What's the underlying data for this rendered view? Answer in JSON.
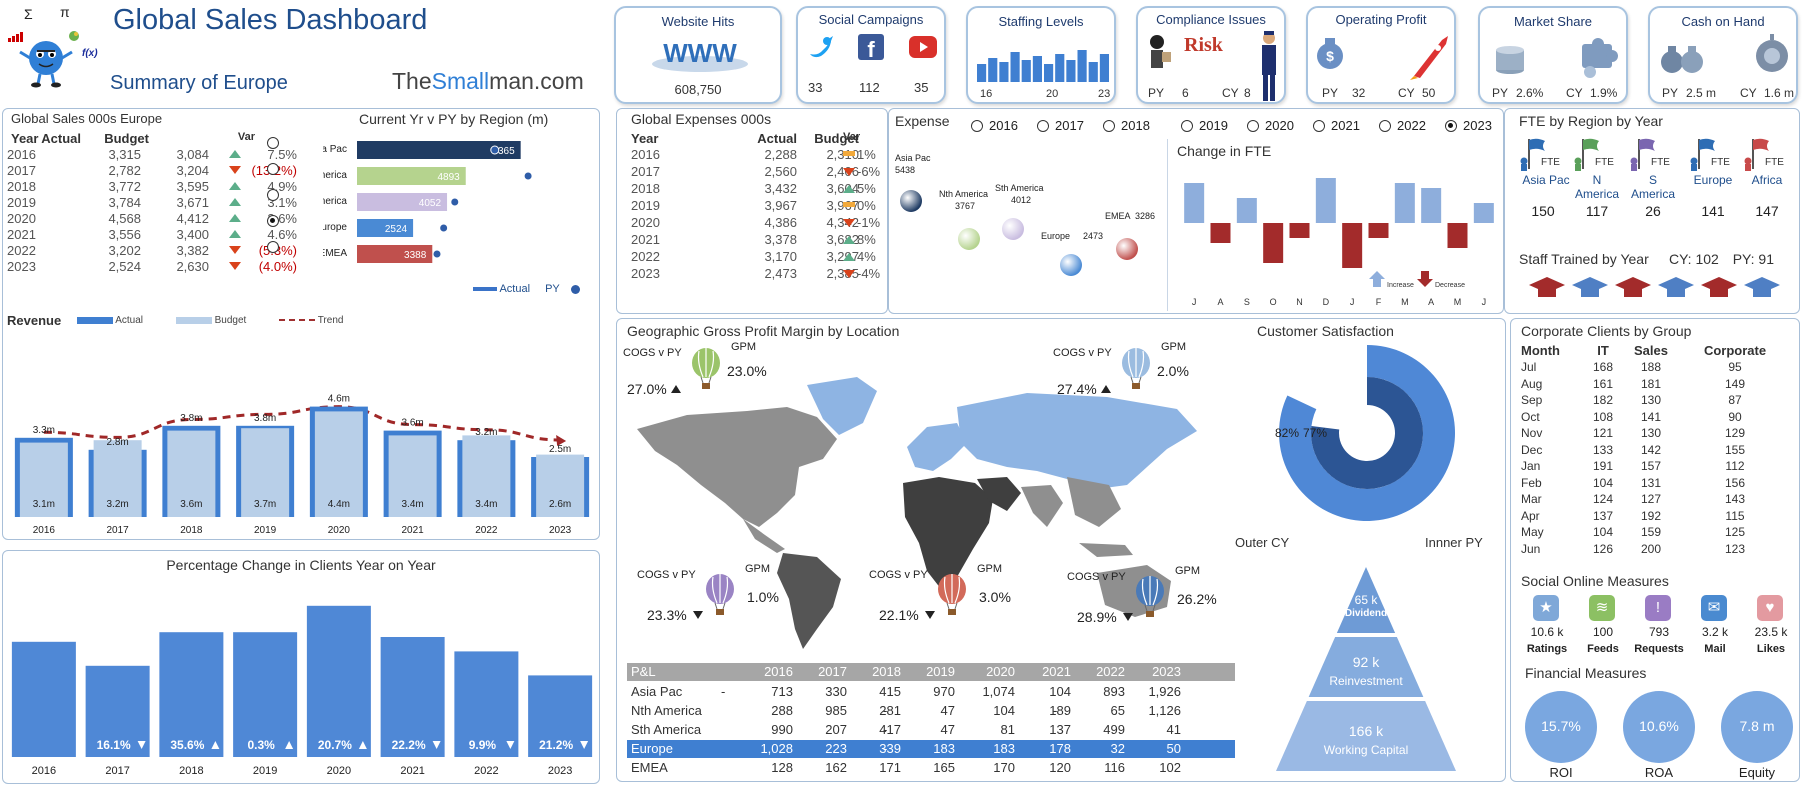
{
  "header": {
    "title": "Global Sales Dashboard",
    "subtitle": "Summary of Europe",
    "brand_pre": "The",
    "brand_mid": "Small",
    "brand_post": "man.com",
    "sigma": "Σ",
    "pi": "π",
    "fx": "f(x)"
  },
  "kpis": {
    "website": {
      "title": "Website Hits",
      "value": "608,750",
      "badge": "WWW"
    },
    "social": {
      "title": "Social Campaigns",
      "twitter": "33",
      "facebook": "112",
      "youtube": "35"
    },
    "staffing": {
      "title": "Staffing Levels",
      "labels": [
        "16",
        "20",
        "23"
      ],
      "bars": [
        0.45,
        0.6,
        0.5,
        0.75,
        0.55,
        0.65,
        0.45,
        0.7,
        0.55,
        0.8,
        0.5,
        0.7
      ]
    },
    "compliance": {
      "title": "Compliance Issues",
      "pr": "PY",
      "py": "6",
      "cl": "CY",
      "cy": "8",
      "badge": "Risk"
    },
    "profit": {
      "title": "Operating Profit",
      "pl": "PY",
      "py": "32",
      "cl": "CY",
      "cy": "50"
    },
    "share": {
      "title": "Market Share",
      "pl": "PY",
      "py": "2.6%",
      "cl": "CY",
      "cy": "1.9%"
    },
    "cash": {
      "title": "Cash on Hand",
      "pl": "PY",
      "py": "2.5 m",
      "cl": "CY",
      "cy": "1.6 m"
    }
  },
  "sales_table": {
    "title": "Global Sales 000s Europe",
    "headers": [
      "Year",
      "Actual",
      "Budget",
      "Var"
    ],
    "rows": [
      {
        "year": "2016",
        "actual": "3,315",
        "budget": "3,084",
        "var": "7.5%",
        "dir": "up"
      },
      {
        "year": "2017",
        "actual": "2,782",
        "budget": "3,204",
        "var": "(13.2%)",
        "dir": "down"
      },
      {
        "year": "2018",
        "actual": "3,772",
        "budget": "3,595",
        "var": "4.9%",
        "dir": "up"
      },
      {
        "year": "2019",
        "actual": "3,784",
        "budget": "3,671",
        "var": "3.1%",
        "dir": "up"
      },
      {
        "year": "2020",
        "actual": "4,568",
        "budget": "4,412",
        "var": "3.6%",
        "dir": "up"
      },
      {
        "year": "2021",
        "actual": "3,556",
        "budget": "3,400",
        "var": "4.6%",
        "dir": "up"
      },
      {
        "year": "2022",
        "actual": "3,202",
        "budget": "3,382",
        "var": "(5.3%)",
        "dir": "down"
      },
      {
        "year": "2023",
        "actual": "2,524",
        "budget": "2,630",
        "var": "(4.0%)",
        "dir": "down"
      }
    ]
  },
  "region_panel": {
    "title": "Current Yr v PY by Region (m)",
    "legend_actual": "Actual",
    "legend_py": "PY",
    "selected": "Europe"
  },
  "expenses_table": {
    "title": "Global Expenses 000s",
    "headers": [
      "Year",
      "Actual",
      "Budget",
      "Var"
    ],
    "rows": [
      {
        "year": "2016",
        "actual": "2,288",
        "budget": "2,310",
        "var": "1%",
        "dir": "flat"
      },
      {
        "year": "2017",
        "actual": "2,560",
        "budget": "2,406",
        "var": "-6%",
        "dir": "down"
      },
      {
        "year": "2018",
        "actual": "3,432",
        "budget": "3,604",
        "var": "5%",
        "dir": "up"
      },
      {
        "year": "2019",
        "actual": "3,967",
        "budget": "3,967",
        "var": "0%",
        "dir": "flat"
      },
      {
        "year": "2020",
        "actual": "4,386",
        "budget": "4,342",
        "var": "-1%",
        "dir": "down"
      },
      {
        "year": "2021",
        "actual": "3,378",
        "budget": "3,682",
        "var": "8%",
        "dir": "up"
      },
      {
        "year": "2022",
        "actual": "3,170",
        "budget": "3,297",
        "var": "4%",
        "dir": "up"
      },
      {
        "year": "2023",
        "actual": "2,473",
        "budget": "2,385",
        "var": "-4%",
        "dir": "down"
      }
    ]
  },
  "expense_panel": {
    "title": "Expense",
    "years": [
      "2016",
      "2017",
      "2018",
      "2019",
      "2020",
      "2021",
      "2022",
      "2023"
    ],
    "selected_year": "2023"
  },
  "fte_change": {
    "title": "Change in FTE",
    "increase": "Increase",
    "decrease": "Decrease"
  },
  "fte_region": {
    "title": "FTE by Region by Year",
    "flag_label": "FTE",
    "regions": [
      {
        "name": "Asia Pac",
        "value": "150",
        "color": "#2e6db4"
      },
      {
        "name": "N America",
        "value": "117",
        "color": "#5aa05a"
      },
      {
        "name": "S America",
        "value": "26",
        "color": "#7a66b0"
      },
      {
        "name": "Europe",
        "value": "141",
        "color": "#2e6db4"
      },
      {
        "name": "Africa",
        "value": "147",
        "color": "#c84a4a"
      }
    ],
    "staff_trained": "Staff Trained by Year",
    "cy_label": "CY:",
    "cy": "102",
    "py_label": "PY:",
    "py": "91"
  },
  "revenue": {
    "title": "Revenue",
    "legend_actual": "Actual",
    "legend_budget": "Budget",
    "legend_trend": "Trend"
  },
  "clients": {
    "title": "Percentage Change in Clients Year on Year"
  },
  "map": {
    "title": "Geographic Gross Profit Margin by Location",
    "balloons": [
      {
        "region": "Nth America",
        "cogs_label": "COGS v PY",
        "cogs": "27.0%",
        "gpm_label": "GPM",
        "gpm": "23.0%",
        "color": "#9bc46a",
        "dir": "up"
      },
      {
        "region": "Europe",
        "cogs_label": "COGS v PY",
        "cogs": "27.4%",
        "gpm_label": "GPM",
        "gpm": "2.0%",
        "color": "#9bbce0",
        "dir": "up"
      },
      {
        "region": "Sth America",
        "cogs_label": "COGS v PY",
        "cogs": "23.3%",
        "gpm_label": "GPM",
        "gpm": "1.0%",
        "color": "#9a84c4",
        "dir": "down"
      },
      {
        "region": "EMEA",
        "cogs_label": "COGS v PY",
        "cogs": "22.1%",
        "gpm_label": "GPM",
        "gpm": "3.0%",
        "color": "#d26a5a",
        "dir": "down"
      },
      {
        "region": "Asia Pac",
        "cogs_label": "COGS v PY",
        "cogs": "28.9%",
        "gpm_label": "GPM",
        "gpm": "26.2%",
        "color": "#4a7ab8",
        "dir": "down"
      }
    ]
  },
  "pl_table": {
    "headers": [
      "P&L",
      "2016",
      "2017",
      "2018",
      "2019",
      "2020",
      "2021",
      "2022",
      "2023"
    ],
    "rows": [
      {
        "name": "Asia Pac",
        "vals": [
          "713",
          "330",
          "415",
          "970",
          "1,074",
          "104",
          "893",
          "1,926"
        ],
        "neg": [
          true,
          false,
          false,
          false,
          false,
          false,
          false,
          false
        ],
        "selected": false
      },
      {
        "name": "Nth America",
        "vals": [
          "288",
          "985",
          "281",
          "47",
          "104",
          "189",
          "65",
          "1,126"
        ],
        "neg": [
          false,
          false,
          false,
          true,
          false,
          false,
          true,
          false
        ],
        "selected": false
      },
      {
        "name": "Sth America",
        "vals": [
          "990",
          "207",
          "417",
          "47",
          "81",
          "137",
          "499",
          "41"
        ],
        "neg": [
          false,
          false,
          false,
          true,
          false,
          false,
          false,
          false
        ],
        "selected": false
      },
      {
        "name": "Europe",
        "vals": [
          "1,028",
          "223",
          "339",
          "183",
          "183",
          "178",
          "32",
          "50"
        ],
        "neg": [
          false,
          false,
          false,
          true,
          false,
          false,
          false,
          false
        ],
        "selected": true
      },
      {
        "name": "EMEA",
        "vals": [
          "128",
          "162",
          "171",
          "165",
          "170",
          "120",
          "116",
          "102"
        ],
        "neg": [
          false,
          false,
          false,
          false,
          false,
          false,
          false,
          false
        ],
        "selected": false
      }
    ]
  },
  "satisfaction": {
    "title": "Customer Satisfaction",
    "outer_label": "Outer CY",
    "inner_label": "Innner PY"
  },
  "pyramid": [
    {
      "value": "65 k",
      "label": "Dividend"
    },
    {
      "value": "92 k",
      "label": "Reinvestment"
    },
    {
      "value": "166 k",
      "label": "Working Capital"
    }
  ],
  "corporate": {
    "title": "Corporate Clients by Group",
    "headers": [
      "Month",
      "IT",
      "Sales",
      "Corporate"
    ],
    "rows": [
      [
        "Jul",
        "168",
        "188",
        "95"
      ],
      [
        "Aug",
        "161",
        "181",
        "149"
      ],
      [
        "Sep",
        "182",
        "130",
        "87"
      ],
      [
        "Oct",
        "108",
        "141",
        "90"
      ],
      [
        "Nov",
        "121",
        "130",
        "129"
      ],
      [
        "Dec",
        "133",
        "142",
        "155"
      ],
      [
        "Jan",
        "191",
        "157",
        "112"
      ],
      [
        "Feb",
        "104",
        "131",
        "156"
      ],
      [
        "Mar",
        "124",
        "127",
        "143"
      ],
      [
        "Apr",
        "137",
        "192",
        "115"
      ],
      [
        "May",
        "104",
        "159",
        "125"
      ],
      [
        "Jun",
        "126",
        "200",
        "123"
      ]
    ]
  },
  "social_measures": {
    "title": "Social Online Measures",
    "items": [
      {
        "value": "10.6 k",
        "label": "Ratings",
        "color": "#7fa8d8",
        "icon": "★"
      },
      {
        "value": "100",
        "label": "Feeds",
        "color": "#8cc063",
        "icon": "≋"
      },
      {
        "value": "793",
        "label": "Requests",
        "color": "#9a7cc4",
        "icon": "!"
      },
      {
        "value": "3.2 k",
        "label": "Mail",
        "color": "#4a8ad0",
        "icon": "✉"
      },
      {
        "value": "23.5 k",
        "label": "Likes",
        "color": "#e39aa0",
        "icon": "♥"
      }
    ]
  },
  "financial": {
    "title": "Financial Measures",
    "items": [
      {
        "value": "15.7%",
        "label": "ROI"
      },
      {
        "value": "10.6%",
        "label": "ROA"
      },
      {
        "value": "7.8 m",
        "label": "Equity"
      }
    ]
  },
  "chart_data": [
    {
      "type": "bar",
      "title": "Current Yr v PY by Region (m)",
      "categories": [
        "Asia Pac",
        "Nth America",
        "Sth America",
        "Europe",
        "EMEA"
      ],
      "series": [
        {
          "name": "Actual",
          "values": [
            7365,
            4893,
            4052,
            2524,
            3388
          ]
        },
        {
          "name": "PY",
          "values": [
            6200,
            7700,
            4400,
            3900,
            3600
          ]
        }
      ],
      "colors": [
        "#1f3b63",
        "#b5d38e",
        "#c9bde0",
        "#4a8ad4",
        "#c0504d"
      ],
      "xlim": [
        0,
        9000
      ]
    },
    {
      "type": "bar",
      "title": "Revenue",
      "categories": [
        "2016",
        "2017",
        "2018",
        "2019",
        "2020",
        "2021",
        "2022",
        "2023"
      ],
      "series": [
        {
          "name": "Actual",
          "values": [
            3.3,
            2.8,
            3.8,
            3.8,
            4.6,
            3.6,
            3.2,
            2.5
          ],
          "labels": [
            "3.3m",
            "2.8m",
            "3.8m",
            "3.8m",
            "4.6m",
            "3.6m",
            "3.2m",
            "2.5m"
          ]
        },
        {
          "name": "Budget",
          "values": [
            3.1,
            3.2,
            3.6,
            3.7,
            4.4,
            3.4,
            3.4,
            2.6
          ],
          "labels": [
            "3.1m",
            "3.2m",
            "3.6m",
            "3.7m",
            "4.4m",
            "3.4m",
            "3.4m",
            "2.6m"
          ]
        },
        {
          "name": "Trend",
          "values": [
            3.7,
            3.5,
            4.2,
            4.4,
            4.7,
            4.0,
            3.8,
            3.4
          ]
        }
      ],
      "ylim": [
        0,
        5
      ]
    },
    {
      "type": "bar",
      "title": "Percentage Change in Clients Year on Year",
      "categories": [
        "2016",
        "2017",
        "2018",
        "2019",
        "2020",
        "2021",
        "2022",
        "2023"
      ],
      "values": [
        48,
        38,
        52,
        52,
        63,
        50,
        44,
        34
      ],
      "labels": [
        "",
        "16.1%",
        "35.6%",
        "0.3%",
        "20.7%",
        "22.2%",
        "9.9%",
        "21.2%"
      ],
      "dirs": [
        "",
        "down",
        "up",
        "up",
        "up",
        "down",
        "down",
        "down"
      ],
      "ylim": [
        0,
        70
      ]
    },
    {
      "type": "bar",
      "title": "Change in FTE",
      "categories": [
        "J",
        "A",
        "S",
        "O",
        "N",
        "D",
        "J",
        "F",
        "M",
        "A",
        "M",
        "J"
      ],
      "values": [
        8,
        -4,
        5,
        -8,
        -3,
        9,
        -9,
        -3,
        8,
        7,
        -5,
        4
      ],
      "ylim": [
        -10,
        10
      ]
    },
    {
      "type": "scatter",
      "title": "Expense",
      "points": [
        {
          "label": "Asia Pac",
          "value": 5438,
          "color": "#1f3b63"
        },
        {
          "label": "Nth America",
          "value": 3767,
          "color": "#b5d38e"
        },
        {
          "label": "Sth America",
          "value": 4012,
          "color": "#c9bde0"
        },
        {
          "label": "Europe",
          "value": 2473,
          "color": "#4a8ad4"
        },
        {
          "label": "EMEA",
          "value": 3286,
          "color": "#c0504d"
        }
      ]
    },
    {
      "type": "pie",
      "title": "Customer Satisfaction",
      "series": [
        {
          "name": "Outer CY",
          "values": [
            82,
            18
          ]
        },
        {
          "name": "Innner PY",
          "values": [
            77,
            23
          ]
        }
      ],
      "labels": [
        "82%",
        "77%"
      ]
    }
  ]
}
